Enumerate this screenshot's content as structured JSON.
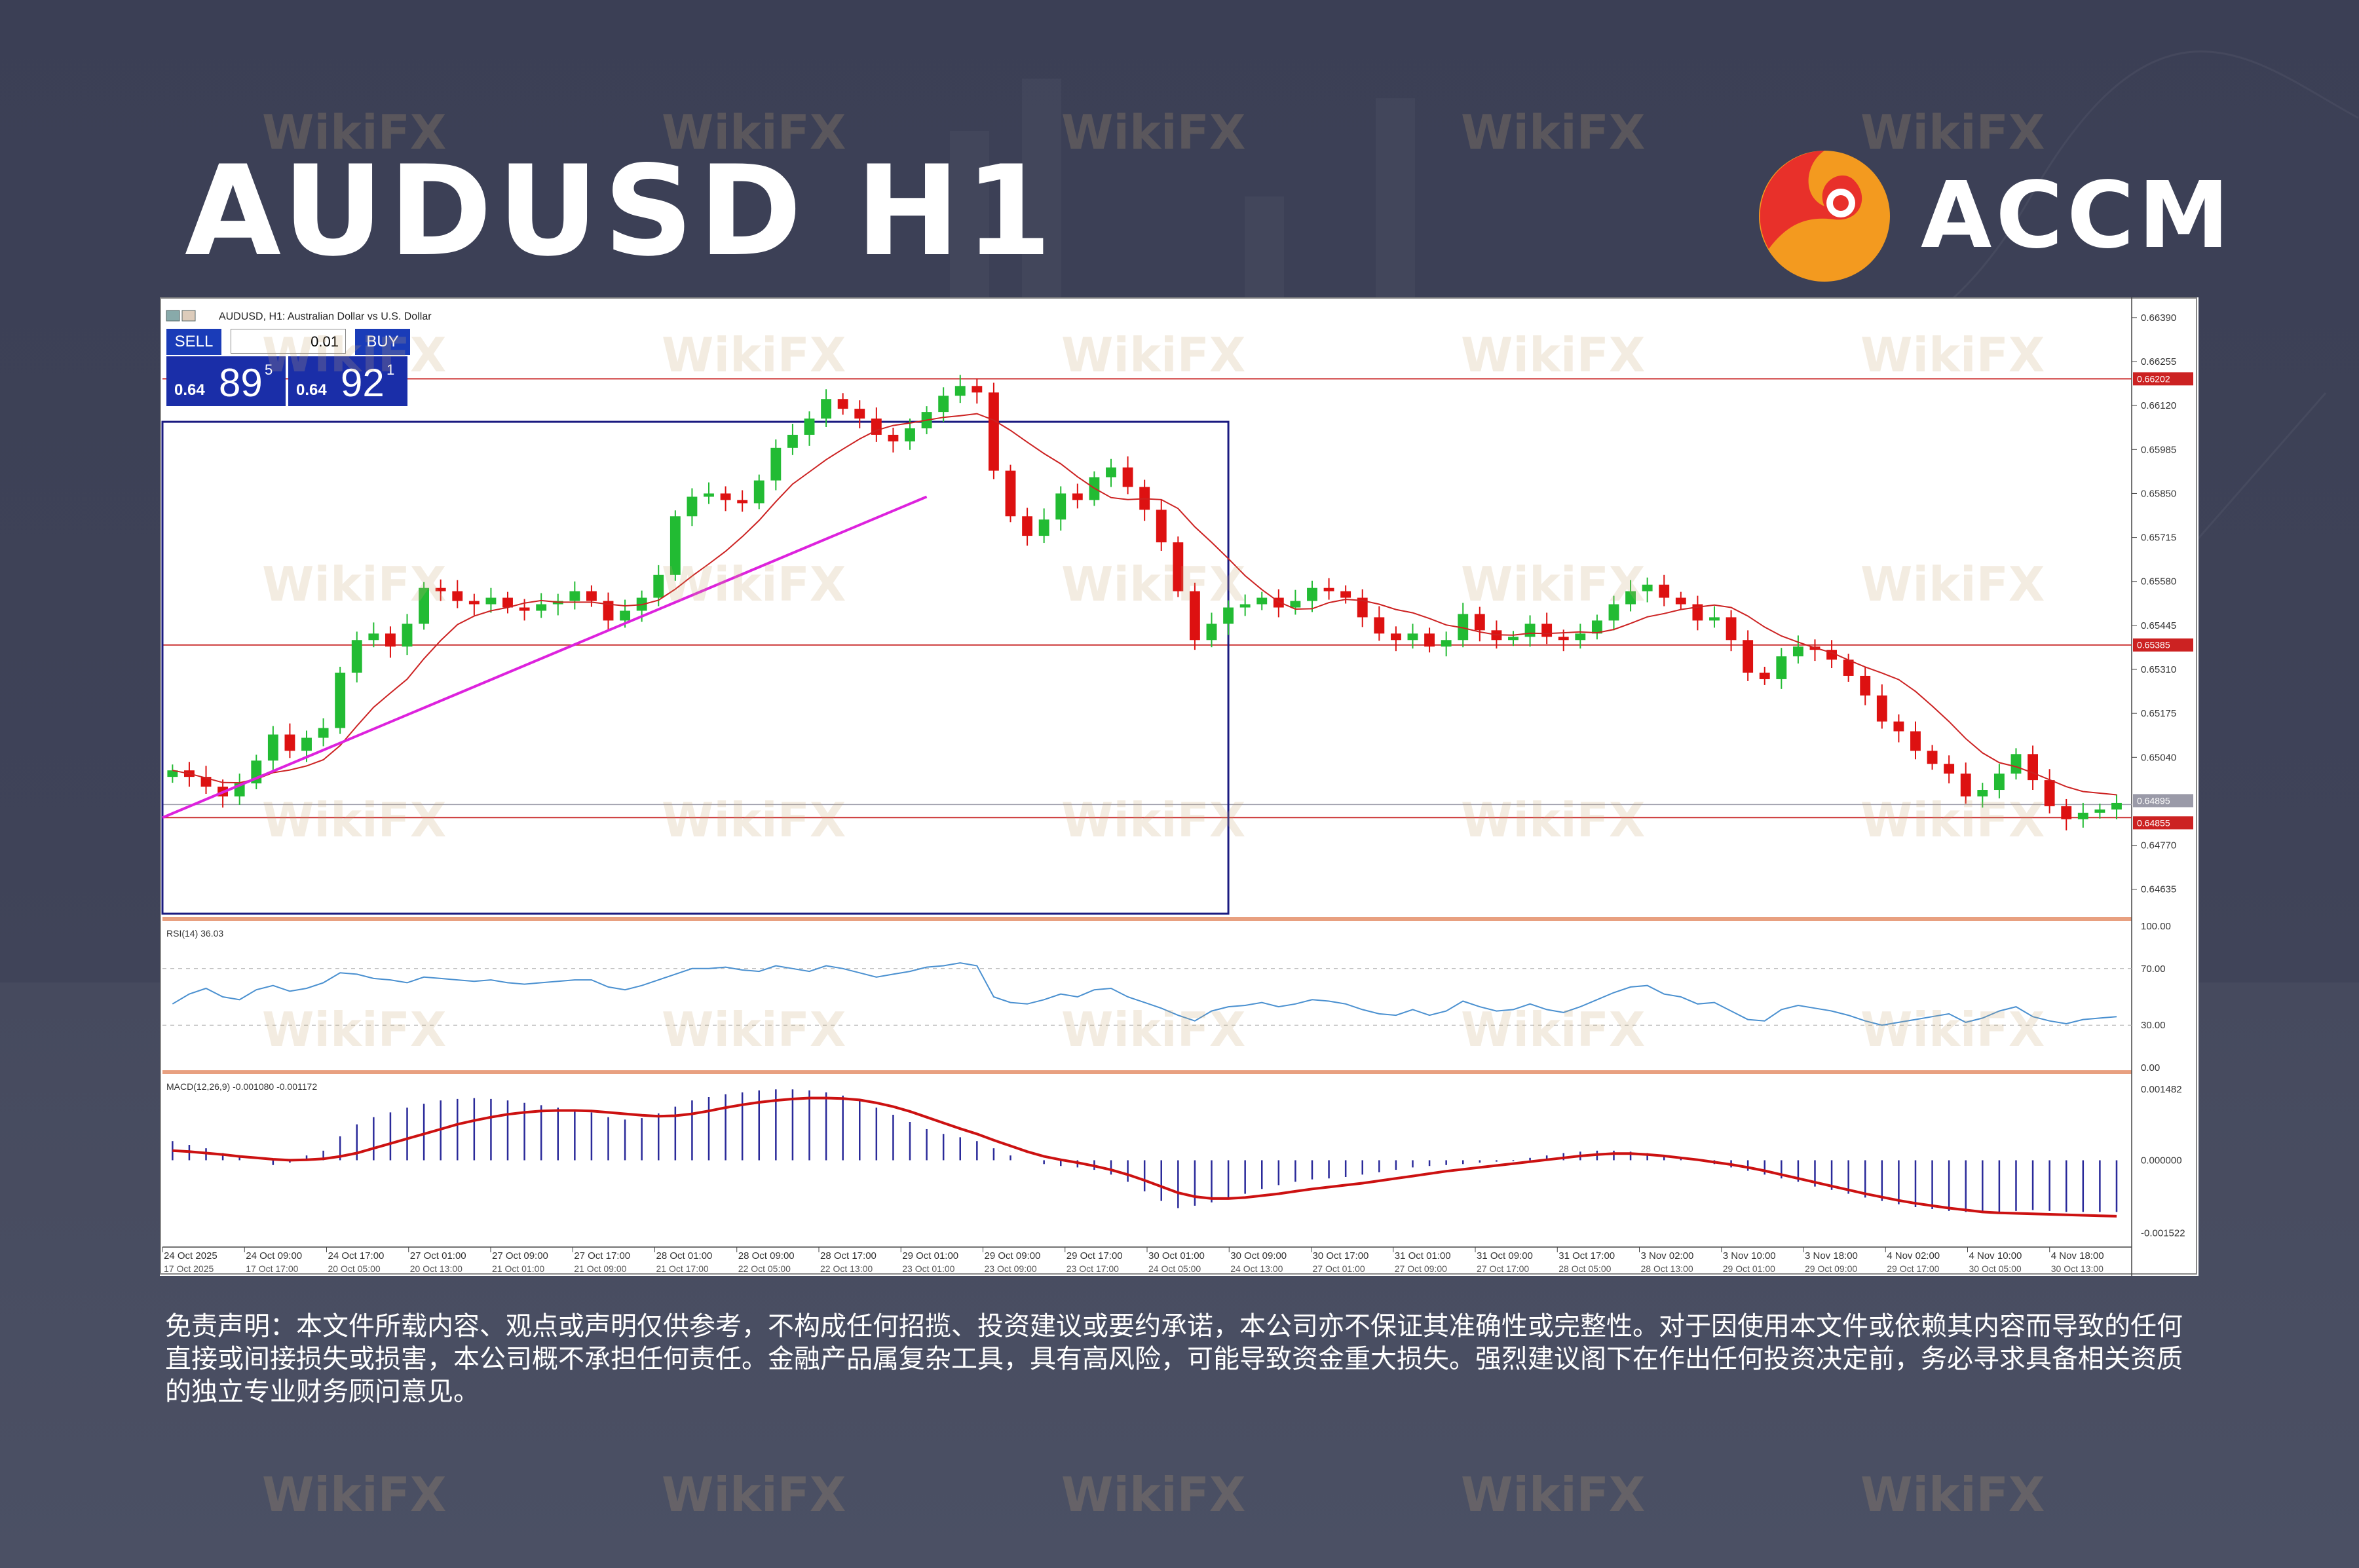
{
  "header": {
    "title": "AUDUSD H1",
    "brand": "ACCM"
  },
  "trade_panel": {
    "sell_label": "SELL",
    "buy_label": "BUY",
    "lot": "0.01",
    "sell_prefix": "0.64",
    "sell_big": "89",
    "sell_sup": "5",
    "buy_prefix": "0.64",
    "buy_big": "92",
    "buy_sup": "1"
  },
  "watermark": "WikiFX",
  "disclaimer": "免责声明：本文件所载内容、观点或声明仅供参考，不构成任何招揽、投资建议或要约承诺，本公司亦不保证其准确性或完整性。对于因使用本文件或依赖其内容而导致的任何直接或间接损失或损害，本公司概不承担任何责任。金融产品属复杂工具，具有高风险，可能导致资金重大损失。强烈建议阁下在作出任何投资决定前，务必寻求具备相关资质的独立专业财务顾问意见。",
  "colors": {
    "bull": "#22bb33",
    "bear": "#dd1111",
    "ma": "#cc2222",
    "trend": "#dd22dd",
    "box": "#1a1a80",
    "hline": "#cc3333",
    "rsi": "#4a90d0",
    "macd_hist": "#2a2a9a",
    "macd_signal": "#cc1111",
    "logo_orange": "#f39a1f",
    "logo_red": "#e8302a"
  },
  "chart_data": {
    "type": "candlestick",
    "title": "AUDUSD, H1:  Australian Dollar vs U.S. Dollar",
    "ylim": [
      0.6455,
      0.6644
    ],
    "y_ticks": [
      0.6639,
      0.66255,
      0.6612,
      0.65985,
      0.6585,
      0.65715,
      0.6558,
      0.65445,
      0.6531,
      0.65175,
      0.6504,
      0.6477,
      0.64635
    ],
    "y_tick_labels": [
      "0.66390",
      "0.66255",
      "0.66120",
      "0.65985",
      "0.65850",
      "0.65715",
      "0.65580",
      "0.65445",
      "0.65310",
      "0.65175",
      "0.65040",
      "0.64770",
      "0.64635"
    ],
    "price_tags": [
      {
        "label": "0.66202",
        "value": 0.66202
      },
      {
        "label": "0.65385",
        "value": 0.65385
      },
      {
        "label": "0.64895",
        "value": 0.64895
      },
      {
        "label": "0.64855",
        "value": 0.64855
      }
    ],
    "horizontal_lines": [
      0.66202,
      0.65385,
      0.64855
    ],
    "bid_line": 0.64895,
    "price_path": [
      0.65,
      0.6498,
      0.6495,
      0.6492,
      0.6496,
      0.6503,
      0.6511,
      0.6506,
      0.651,
      0.6513,
      0.653,
      0.654,
      0.6542,
      0.6538,
      0.6545,
      0.6556,
      0.6555,
      0.6552,
      0.6551,
      0.6553,
      0.655,
      0.6549,
      0.6551,
      0.6552,
      0.6555,
      0.6552,
      0.6546,
      0.6549,
      0.6553,
      0.656,
      0.6578,
      0.6584,
      0.6585,
      0.6583,
      0.6582,
      0.6589,
      0.6599,
      0.6603,
      0.6608,
      0.6614,
      0.6611,
      0.6608,
      0.6603,
      0.6601,
      0.6605,
      0.661,
      0.6615,
      0.6618,
      0.6616,
      0.6592,
      0.6578,
      0.6572,
      0.6577,
      0.6585,
      0.6583,
      0.659,
      0.6593,
      0.6587,
      0.658,
      0.657,
      0.6555,
      0.654,
      0.6545,
      0.655,
      0.6551,
      0.6553,
      0.655,
      0.6552,
      0.6556,
      0.6555,
      0.6553,
      0.6547,
      0.6542,
      0.654,
      0.6542,
      0.6538,
      0.654,
      0.6548,
      0.6543,
      0.654,
      0.6541,
      0.6545,
      0.6541,
      0.654,
      0.6542,
      0.6546,
      0.6551,
      0.6555,
      0.6557,
      0.6553,
      0.6551,
      0.6546,
      0.6547,
      0.654,
      0.653,
      0.6528,
      0.6535,
      0.6538,
      0.6537,
      0.6534,
      0.6529,
      0.6523,
      0.6515,
      0.6512,
      0.6506,
      0.6502,
      0.6499,
      0.6492,
      0.6494,
      0.6499,
      0.6505,
      0.6497,
      0.6489,
      0.6485,
      0.6487,
      0.6488,
      0.649
    ],
    "ma_period_label": "MA",
    "trendline": {
      "from_index": 0,
      "from_value": 0.64855,
      "to_index": 45,
      "to_value": 0.6584
    },
    "range_box": {
      "from_index": 0,
      "to_index": 63,
      "top": 0.6607,
      "bottom": 0.6456
    },
    "x_labels_top": [
      "24 Oct 2025",
      "24 Oct 09:00",
      "24 Oct 17:00",
      "27 Oct 01:00",
      "27 Oct 09:00",
      "27 Oct 17:00",
      "28 Oct 01:00",
      "28 Oct 09:00",
      "28 Oct 17:00",
      "29 Oct 01:00",
      "29 Oct 09:00",
      "29 Oct 17:00",
      "30 Oct 01:00",
      "30 Oct 09:00",
      "30 Oct 17:00",
      "31 Oct 01:00",
      "31 Oct 09:00",
      "31 Oct 17:00",
      "3 Nov 02:00",
      "3 Nov 10:00",
      "3 Nov 18:00",
      "4 Nov 02:00",
      "4 Nov 10:00",
      "4 Nov 18:00"
    ],
    "x_labels_bottom": [
      "17 Oct 2025",
      "17 Oct 17:00",
      "20 Oct 05:00",
      "20 Oct 13:00",
      "21 Oct 01:00",
      "21 Oct 09:00",
      "21 Oct 17:00",
      "22 Oct 05:00",
      "22 Oct 13:00",
      "23 Oct 01:00",
      "23 Oct 09:00",
      "23 Oct 17:00",
      "24 Oct 05:00",
      "24 Oct 13:00",
      "27 Oct 01:00",
      "27 Oct 09:00",
      "27 Oct 17:00",
      "28 Oct 05:00",
      "28 Oct 13:00",
      "29 Oct 01:00",
      "29 Oct 09:00",
      "29 Oct 17:00",
      "30 Oct 05:00",
      "30 Oct 13:00"
    ],
    "rsi": {
      "label": "RSI(14) 36.03",
      "levels_labels": [
        "100.00",
        "70.00",
        "30.00",
        "0.00"
      ],
      "levels": [
        100,
        70,
        30,
        0
      ],
      "values": [
        45,
        52,
        56,
        50,
        48,
        55,
        58,
        54,
        56,
        60,
        67,
        66,
        63,
        62,
        60,
        64,
        63,
        62,
        61,
        62,
        60,
        59,
        60,
        61,
        62,
        62,
        57,
        55,
        58,
        62,
        66,
        70,
        70,
        71,
        69,
        68,
        72,
        70,
        68,
        72,
        70,
        67,
        64,
        66,
        68,
        71,
        72,
        74,
        72,
        50,
        46,
        45,
        48,
        52,
        50,
        55,
        56,
        50,
        46,
        42,
        37,
        33,
        40,
        43,
        44,
        46,
        43,
        45,
        48,
        47,
        45,
        41,
        38,
        37,
        41,
        37,
        40,
        47,
        43,
        40,
        41,
        45,
        41,
        39,
        43,
        48,
        53,
        57,
        58,
        52,
        50,
        45,
        46,
        40,
        34,
        33,
        41,
        44,
        42,
        40,
        37,
        33,
        30,
        32,
        34,
        36,
        38,
        32,
        35,
        40,
        43,
        36,
        33,
        31,
        34,
        35,
        36
      ],
      "ylim": [
        0,
        100
      ]
    },
    "macd": {
      "label": "MACD(12,26,9) -0.001080 -0.001172",
      "tick_labels": [
        "0.001482",
        "0.000000",
        "-0.001522"
      ],
      "ticks": [
        0.001482,
        0.0,
        -0.001522
      ],
      "ylim": [
        -0.00165,
        0.00158
      ],
      "histogram": [
        0.0004,
        0.00032,
        0.00025,
        0.00015,
        8e-05,
        0.0,
        -0.0001,
        -5e-05,
        0.0001,
        0.0002,
        0.0005,
        0.00075,
        0.0009,
        0.001,
        0.0011,
        0.00118,
        0.00125,
        0.00128,
        0.0013,
        0.00128,
        0.00125,
        0.0012,
        0.00115,
        0.0011,
        0.00106,
        0.001,
        0.0009,
        0.00085,
        0.00088,
        0.00098,
        0.00112,
        0.00125,
        0.00132,
        0.00138,
        0.00142,
        0.00146,
        0.00148,
        0.00148,
        0.00146,
        0.00142,
        0.00135,
        0.00125,
        0.0011,
        0.00095,
        0.0008,
        0.00065,
        0.00055,
        0.00048,
        0.0004,
        0.00025,
        0.0001,
        0.0,
        -8e-05,
        -0.00012,
        -0.00015,
        -0.0002,
        -0.0003,
        -0.00045,
        -0.00065,
        -0.00085,
        -0.001,
        -0.00095,
        -0.00088,
        -0.0008,
        -0.0007,
        -0.0006,
        -0.00052,
        -0.00045,
        -0.0004,
        -0.00038,
        -0.00035,
        -0.0003,
        -0.00025,
        -0.0002,
        -0.00015,
        -0.00012,
        -0.0001,
        -8e-05,
        -5e-05,
        -3e-05,
        -2e-05,
        5e-05,
        0.0001,
        0.00015,
        0.00018,
        0.0002,
        0.0002,
        0.00018,
        0.00015,
        0.0001,
        5e-05,
        0.0,
        -8e-05,
        -0.00015,
        -0.00022,
        -0.0003,
        -0.00038,
        -0.00045,
        -0.00055,
        -0.00062,
        -0.0007,
        -0.00078,
        -0.00085,
        -0.00092,
        -0.00098,
        -0.00102,
        -0.00106,
        -0.00108,
        -0.0011,
        -0.00108,
        -0.00106,
        -0.00104,
        -0.00106,
        -0.00108,
        -0.00108,
        -0.00108,
        -0.00108
      ],
      "signal": [
        0.0002,
        0.00018,
        0.00015,
        0.00012,
        8e-05,
        5e-05,
        2e-05,
        0.0,
        1e-05,
        3e-05,
        8e-05,
        0.00015,
        0.00025,
        0.00035,
        0.00045,
        0.00055,
        0.00065,
        0.00075,
        0.00083,
        0.0009,
        0.00096,
        0.001,
        0.00103,
        0.00104,
        0.00104,
        0.00103,
        0.001,
        0.00097,
        0.00094,
        0.00092,
        0.00093,
        0.00097,
        0.00103,
        0.0011,
        0.00116,
        0.00121,
        0.00125,
        0.00128,
        0.0013,
        0.0013,
        0.00129,
        0.00126,
        0.0012,
        0.00112,
        0.00102,
        0.0009,
        0.00078,
        0.00066,
        0.00055,
        0.00042,
        0.0003,
        0.00018,
        8e-05,
        1e-05,
        -5e-05,
        -0.00012,
        -0.0002,
        -0.0003,
        -0.00042,
        -0.00055,
        -0.00068,
        -0.00076,
        -0.0008,
        -0.0008,
        -0.00078,
        -0.00074,
        -0.0007,
        -0.00065,
        -0.0006,
        -0.00056,
        -0.00052,
        -0.00048,
        -0.00043,
        -0.00038,
        -0.00033,
        -0.00028,
        -0.00023,
        -0.00019,
        -0.00015,
        -0.00011,
        -7e-05,
        -3e-05,
        1e-05,
        5e-05,
        9e-05,
        0.00012,
        0.00014,
        0.00014,
        0.00012,
        9e-05,
        5e-05,
        1e-05,
        -4e-05,
        -9e-05,
        -0.00015,
        -0.00022,
        -0.0003,
        -0.00038,
        -0.00046,
        -0.00054,
        -0.00062,
        -0.0007,
        -0.00077,
        -0.00084,
        -0.0009,
        -0.00095,
        -0.001,
        -0.00104,
        -0.00108,
        -0.0011,
        -0.00111,
        -0.00112,
        -0.00113,
        -0.00114,
        -0.00115,
        -0.00116,
        -0.00117
      ]
    }
  }
}
